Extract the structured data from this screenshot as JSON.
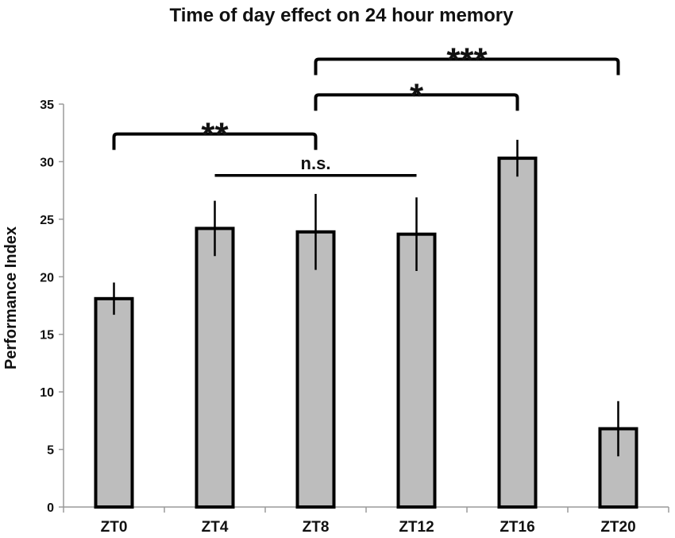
{
  "chart_data": {
    "type": "bar",
    "title": "Time of day effect on 24 hour memory",
    "xlabel": "",
    "ylabel": "Performance Index",
    "ylim": [
      0,
      35
    ],
    "yticks": [
      0,
      5,
      10,
      15,
      20,
      25,
      30,
      35
    ],
    "grid": false,
    "categories": [
      "ZT0",
      "ZT4",
      "ZT8",
      "ZT12",
      "ZT16",
      "ZT20"
    ],
    "values": [
      18.1,
      24.2,
      23.9,
      23.7,
      30.3,
      6.8
    ],
    "errors": [
      1.4,
      2.4,
      3.3,
      3.2,
      1.6,
      2.4
    ],
    "colors": {
      "bar_fill": "#bdbdbd",
      "bar_stroke": "#000000"
    },
    "annotations": [
      {
        "label": "**",
        "from": "ZT0",
        "to": "ZT8",
        "style": "bracket",
        "y": 32.4
      },
      {
        "label": "n.s.",
        "from": "ZT4",
        "to": "ZT12",
        "style": "line",
        "y": 28.8
      },
      {
        "label": "*",
        "from": "ZT8",
        "to": "ZT16",
        "style": "bracket",
        "y": 35.8
      },
      {
        "label": "***",
        "from": "ZT8",
        "to": "ZT20",
        "style": "bracket",
        "y": 38.9
      }
    ]
  }
}
